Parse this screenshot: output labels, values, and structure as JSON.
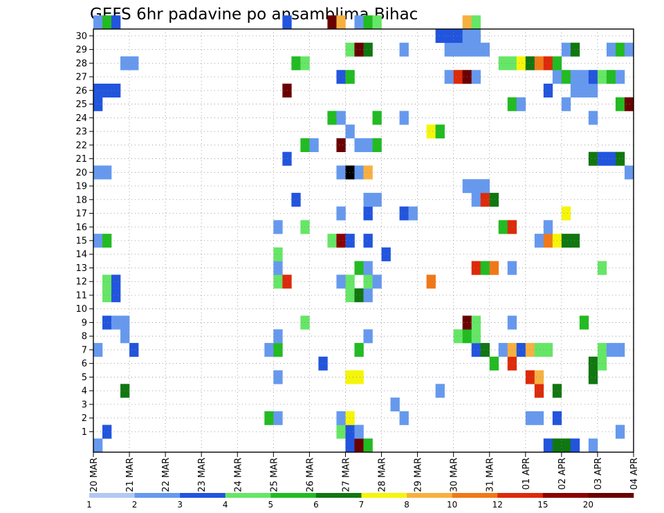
{
  "chart_data": {
    "type": "heatmap",
    "title": "GEFS 6hr padavine po ansamblima Bihac",
    "y_ticks": [
      "1",
      "2",
      "3",
      "4",
      "5",
      "6",
      "7",
      "8",
      "9",
      "10",
      "11",
      "12",
      "13",
      "14",
      "15",
      "16",
      "17",
      "18",
      "19",
      "20",
      "21",
      "22",
      "23",
      "24",
      "25",
      "26",
      "27",
      "28",
      "29",
      "30"
    ],
    "x_ticks": [
      "20 MAR",
      "21 MAR",
      "22 MAR",
      "23 MAR",
      "24 MAR",
      "25 MAR",
      "26 MAR",
      "27 MAR",
      "28 MAR",
      "29 MAR",
      "30 MAR",
      "31 MAR",
      "01 APR",
      "02 APR",
      "03 APR",
      "04 APR"
    ],
    "x_time_steps": 60,
    "y_members": 31,
    "grid": true,
    "colorbar": {
      "levels": [
        "1",
        "2",
        "3",
        "4",
        "5",
        "6",
        "7",
        "8",
        "10",
        "12",
        "15",
        "20"
      ],
      "colors": [
        "#b3c8f2",
        "#6699ee",
        "#2255dd",
        "#66e666",
        "#22bb22",
        "#117711",
        "#f5f50a",
        "#f7b040",
        "#f07818",
        "#dd2a0a",
        "#8c0000",
        "#6a0000"
      ]
    },
    "cells_by_member": {
      "0": [
        [
          0,
          1
        ],
        [
          28,
          2
        ],
        [
          29,
          11
        ],
        [
          30,
          4
        ],
        [
          50,
          2
        ],
        [
          51,
          5
        ],
        [
          52,
          5
        ],
        [
          53,
          2
        ],
        [
          55,
          1
        ]
      ],
      "1": [
        [
          1,
          2
        ],
        [
          27,
          3
        ],
        [
          28,
          2
        ],
        [
          29,
          1
        ],
        [
          58,
          1
        ]
      ],
      "2": [
        [
          19,
          4
        ],
        [
          20,
          1
        ],
        [
          27,
          1
        ],
        [
          28,
          6
        ],
        [
          34,
          1
        ],
        [
          48,
          1
        ],
        [
          49,
          1
        ],
        [
          51,
          2
        ]
      ],
      "3": [
        [
          33,
          1
        ]
      ],
      "4": [
        [
          3,
          5
        ],
        [
          38,
          1
        ],
        [
          49,
          9
        ],
        [
          51,
          5
        ]
      ],
      "5": [
        [
          20,
          1
        ],
        [
          28,
          6
        ],
        [
          29,
          6
        ],
        [
          48,
          9
        ],
        [
          49,
          7
        ],
        [
          55,
          5
        ]
      ],
      "6": [
        [
          25,
          2
        ],
        [
          44,
          4
        ],
        [
          46,
          9
        ],
        [
          55,
          5
        ],
        [
          56,
          3
        ]
      ],
      "7": [
        [
          0,
          1
        ],
        [
          4,
          2
        ],
        [
          19,
          1
        ],
        [
          20,
          4
        ],
        [
          29,
          4
        ],
        [
          42,
          2
        ],
        [
          43,
          5
        ],
        [
          45,
          1
        ],
        [
          46,
          7
        ],
        [
          47,
          2
        ],
        [
          48,
          7
        ],
        [
          49,
          3
        ],
        [
          50,
          3
        ],
        [
          56,
          3
        ],
        [
          57,
          1
        ],
        [
          58,
          1
        ]
      ],
      "8": [
        [
          3,
          1
        ],
        [
          20,
          1
        ],
        [
          30,
          1
        ],
        [
          40,
          3
        ],
        [
          41,
          4
        ],
        [
          42,
          3
        ]
      ],
      "9": [
        [
          1,
          2
        ],
        [
          2,
          1
        ],
        [
          3,
          1
        ],
        [
          23,
          3
        ],
        [
          41,
          11
        ],
        [
          42,
          3
        ],
        [
          46,
          1
        ],
        [
          54,
          4
        ]
      ],
      "11": [
        [
          1,
          3
        ],
        [
          2,
          2
        ],
        [
          28,
          3
        ],
        [
          29,
          5
        ],
        [
          30,
          1
        ]
      ],
      "12": [
        [
          1,
          3
        ],
        [
          2,
          2
        ],
        [
          20,
          3
        ],
        [
          21,
          9
        ],
        [
          27,
          1
        ],
        [
          28,
          3
        ],
        [
          30,
          3
        ],
        [
          31,
          1
        ],
        [
          37,
          8
        ]
      ],
      "13": [
        [
          20,
          1
        ],
        [
          29,
          4
        ],
        [
          30,
          1
        ],
        [
          42,
          9
        ],
        [
          43,
          4
        ],
        [
          44,
          8
        ],
        [
          46,
          1
        ],
        [
          56,
          3
        ]
      ],
      "14": [
        [
          20,
          3
        ],
        [
          32,
          2
        ]
      ],
      "15": [
        [
          0,
          1
        ],
        [
          1,
          4
        ],
        [
          26,
          3
        ],
        [
          27,
          10
        ],
        [
          28,
          2
        ],
        [
          30,
          2
        ],
        [
          49,
          1
        ],
        [
          50,
          8
        ],
        [
          51,
          6
        ],
        [
          52,
          5
        ],
        [
          53,
          5
        ]
      ],
      "16": [
        [
          20,
          1
        ],
        [
          23,
          3
        ],
        [
          45,
          4
        ],
        [
          46,
          9
        ],
        [
          50,
          1
        ]
      ],
      "17": [
        [
          27,
          1
        ],
        [
          30,
          2
        ],
        [
          34,
          2
        ],
        [
          35,
          1
        ],
        [
          52,
          6
        ]
      ],
      "18": [
        [
          22,
          2
        ],
        [
          30,
          1
        ],
        [
          31,
          1
        ],
        [
          42,
          1
        ],
        [
          43,
          9
        ],
        [
          44,
          5
        ]
      ],
      "19": [
        [
          41,
          1
        ],
        [
          42,
          1
        ],
        [
          43,
          1
        ]
      ],
      "20": [
        [
          0,
          1
        ],
        [
          1,
          1
        ],
        [
          27,
          1
        ],
        [
          28,
          12
        ],
        [
          29,
          1
        ],
        [
          30,
          7
        ],
        [
          59,
          1
        ]
      ],
      "21": [
        [
          21,
          2
        ],
        [
          55,
          5
        ],
        [
          56,
          2
        ],
        [
          57,
          2
        ],
        [
          58,
          5
        ]
      ],
      "22": [
        [
          23,
          4
        ],
        [
          24,
          1
        ],
        [
          27,
          11
        ],
        [
          29,
          1
        ],
        [
          30,
          1
        ],
        [
          31,
          4
        ]
      ],
      "23": [
        [
          28,
          1
        ],
        [
          37,
          6
        ],
        [
          38,
          4
        ]
      ],
      "24": [
        [
          26,
          4
        ],
        [
          27,
          1
        ],
        [
          31,
          4
        ],
        [
          34,
          1
        ],
        [
          55,
          1
        ]
      ],
      "25": [
        [
          0,
          2
        ],
        [
          46,
          4
        ],
        [
          47,
          1
        ],
        [
          52,
          1
        ],
        [
          58,
          4
        ],
        [
          59,
          11
        ]
      ],
      "26": [
        [
          0,
          2
        ],
        [
          1,
          2
        ],
        [
          2,
          2
        ],
        [
          21,
          11
        ],
        [
          50,
          2
        ],
        [
          53,
          1
        ],
        [
          54,
          1
        ],
        [
          55,
          1
        ]
      ],
      "27": [
        [
          27,
          2
        ],
        [
          28,
          4
        ],
        [
          39,
          1
        ],
        [
          40,
          9
        ],
        [
          41,
          11
        ],
        [
          42,
          1
        ],
        [
          51,
          1
        ],
        [
          52,
          4
        ],
        [
          53,
          1
        ],
        [
          54,
          1
        ],
        [
          55,
          2
        ],
        [
          56,
          3
        ],
        [
          57,
          4
        ],
        [
          58,
          1
        ]
      ],
      "28": [
        [
          3,
          1
        ],
        [
          4,
          1
        ],
        [
          22,
          4
        ],
        [
          23,
          3
        ],
        [
          45,
          3
        ],
        [
          46,
          3
        ],
        [
          47,
          6
        ],
        [
          48,
          5
        ],
        [
          49,
          8
        ],
        [
          50,
          9
        ],
        [
          51,
          4
        ]
      ],
      "29": [
        [
          28,
          3
        ],
        [
          29,
          11
        ],
        [
          30,
          5
        ],
        [
          34,
          1
        ],
        [
          39,
          1
        ],
        [
          40,
          1
        ],
        [
          41,
          1
        ],
        [
          42,
          1
        ],
        [
          43,
          1
        ],
        [
          52,
          1
        ],
        [
          53,
          5
        ],
        [
          57,
          1
        ],
        [
          58,
          4
        ],
        [
          59,
          1
        ]
      ],
      "30": [
        [
          38,
          2
        ],
        [
          39,
          2
        ],
        [
          40,
          2
        ],
        [
          41,
          1
        ],
        [
          42,
          1
        ]
      ],
      "31": [
        [
          0,
          1
        ],
        [
          1,
          4
        ],
        [
          2,
          2
        ],
        [
          21,
          2
        ],
        [
          26,
          11
        ],
        [
          27,
          7
        ],
        [
          29,
          1
        ],
        [
          30,
          4
        ],
        [
          31,
          3
        ],
        [
          41,
          7
        ],
        [
          42,
          3
        ]
      ]
    }
  }
}
